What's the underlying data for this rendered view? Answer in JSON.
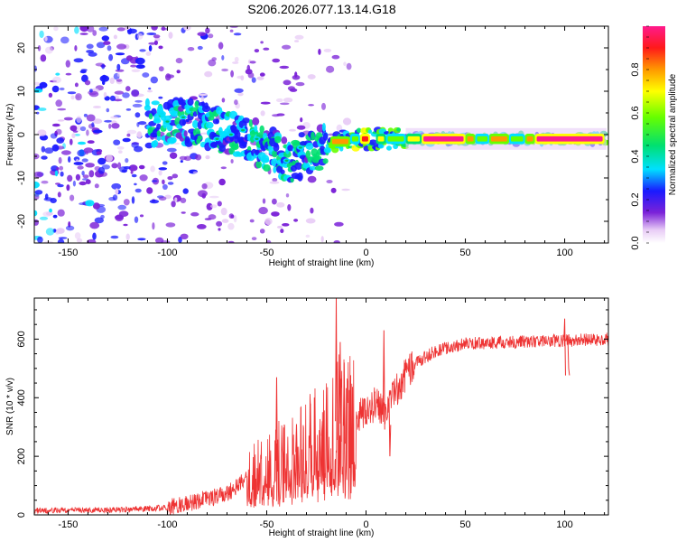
{
  "title": "S206.2026.077.13.14.G18",
  "chart_data": [
    {
      "type": "heatmap",
      "title": "S206.2026.077.13.14.G18",
      "xlabel": "Height of straight line (km)",
      "ylabel": "Frequency (Hz)",
      "xlim": [
        -167,
        122
      ],
      "ylim": [
        -25,
        25
      ],
      "xticks": [
        -150,
        -100,
        -50,
        0,
        50,
        100
      ],
      "yticks": [
        -20,
        -10,
        0,
        10,
        20
      ],
      "colorbar": {
        "label": "Normalized spectral amplitude",
        "range": [
          0,
          1
        ],
        "ticks": [
          "0.0",
          "0.2",
          "0.4",
          "0.6",
          "0.8"
        ],
        "tick_values": [
          0.0,
          0.2,
          0.4,
          0.6,
          0.8
        ]
      },
      "ridge": [
        {
          "x": -160,
          "y": 8
        },
        {
          "x": -120,
          "y": 2
        },
        {
          "x": -95,
          "y": 3
        },
        {
          "x": -80,
          "y": 2
        },
        {
          "x": -70,
          "y": 0
        },
        {
          "x": -60,
          "y": -1
        },
        {
          "x": -45,
          "y": -4
        },
        {
          "x": -38,
          "y": -6
        },
        {
          "x": -30,
          "y": -4
        },
        {
          "x": -20,
          "y": -3
        },
        {
          "x": -10,
          "y": -1
        },
        {
          "x": 0,
          "y": -1
        },
        {
          "x": 10,
          "y": -1
        },
        {
          "x": 30,
          "y": -1
        },
        {
          "x": 60,
          "y": -1
        },
        {
          "x": 90,
          "y": -1
        },
        {
          "x": 120,
          "y": -1
        }
      ]
    },
    {
      "type": "line",
      "xlabel": "Height of straight line (km)",
      "ylabel": "SNR (10 * v/v)",
      "xlim": [
        -167,
        122
      ],
      "ylim": [
        0,
        740
      ],
      "xticks": [
        -150,
        -100,
        -50,
        0,
        50,
        100
      ],
      "yticks": [
        0,
        200,
        400,
        600
      ],
      "color": "#ee3333",
      "envelope": [
        {
          "x": -167,
          "y": 15
        },
        {
          "x": -140,
          "y": 16
        },
        {
          "x": -120,
          "y": 18
        },
        {
          "x": -100,
          "y": 25
        },
        {
          "x": -90,
          "y": 40
        },
        {
          "x": -80,
          "y": 55
        },
        {
          "x": -70,
          "y": 70
        },
        {
          "x": -60,
          "y": 130
        },
        {
          "x": -50,
          "y": 170
        },
        {
          "x": -40,
          "y": 200
        },
        {
          "x": -30,
          "y": 230
        },
        {
          "x": -20,
          "y": 280
        },
        {
          "x": -15,
          "y": 320
        },
        {
          "x": -10,
          "y": 300
        },
        {
          "x": -5,
          "y": 330
        },
        {
          "x": 0,
          "y": 360
        },
        {
          "x": 5,
          "y": 380
        },
        {
          "x": 10,
          "y": 360
        },
        {
          "x": 15,
          "y": 420
        },
        {
          "x": 20,
          "y": 480
        },
        {
          "x": 25,
          "y": 520
        },
        {
          "x": 35,
          "y": 560
        },
        {
          "x": 50,
          "y": 585
        },
        {
          "x": 75,
          "y": 590
        },
        {
          "x": 100,
          "y": 595
        },
        {
          "x": 122,
          "y": 600
        }
      ],
      "spikes": [
        {
          "x": -45,
          "y": 470
        },
        {
          "x": -35,
          "y": 310
        },
        {
          "x": -28,
          "y": 380
        },
        {
          "x": -22,
          "y": 320
        },
        {
          "x": -15,
          "y": 740
        },
        {
          "x": -13,
          "y": 590
        },
        {
          "x": -11,
          "y": 520
        },
        {
          "x": 9,
          "y": 630
        },
        {
          "x": 12,
          "y": 200
        },
        {
          "x": 100,
          "y": 670
        },
        {
          "x": 102,
          "y": 500
        }
      ]
    }
  ]
}
